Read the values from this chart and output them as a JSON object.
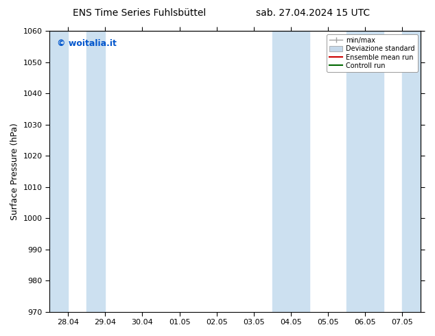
{
  "title_left": "ENS Time Series Fuhlsbüttel",
  "title_right": "sab. 27.04.2024 15 UTC",
  "ylabel": "Surface Pressure (hPa)",
  "ylim": [
    970,
    1060
  ],
  "yticks": [
    970,
    980,
    990,
    1000,
    1010,
    1020,
    1030,
    1040,
    1050,
    1060
  ],
  "xlabels": [
    "28.04",
    "29.04",
    "30.04",
    "01.05",
    "02.05",
    "03.05",
    "04.05",
    "05.05",
    "06.05",
    "07.05"
  ],
  "x_positions": [
    0,
    1,
    2,
    3,
    4,
    5,
    6,
    7,
    8,
    9
  ],
  "shade_bands": [
    {
      "xmin": -0.5,
      "xmax": 0.0
    },
    {
      "xmin": 0.5,
      "xmax": 1.0
    },
    {
      "xmin": 5.5,
      "xmax": 6.5
    },
    {
      "xmin": 7.5,
      "xmax": 8.5
    },
    {
      "xmin": 9.0,
      "xmax": 9.5
    }
  ],
  "shade_color": "#cce0f0",
  "bg_color": "#ffffff",
  "watermark_text": "© woitalia.it",
  "watermark_color": "#0055cc",
  "legend_items": [
    {
      "label": "min/max",
      "color": "#a0a0a0",
      "style": "errorbar"
    },
    {
      "label": "Deviazione standard",
      "color": "#c5d8ea",
      "style": "bar"
    },
    {
      "label": "Ensemble mean run",
      "color": "#cc0000",
      "style": "line"
    },
    {
      "label": "Controll run",
      "color": "#006600",
      "style": "line"
    }
  ],
  "title_fontsize": 10,
  "tick_fontsize": 8,
  "ylabel_fontsize": 9,
  "watermark_fontsize": 9,
  "figsize": [
    6.34,
    4.9
  ],
  "dpi": 100
}
